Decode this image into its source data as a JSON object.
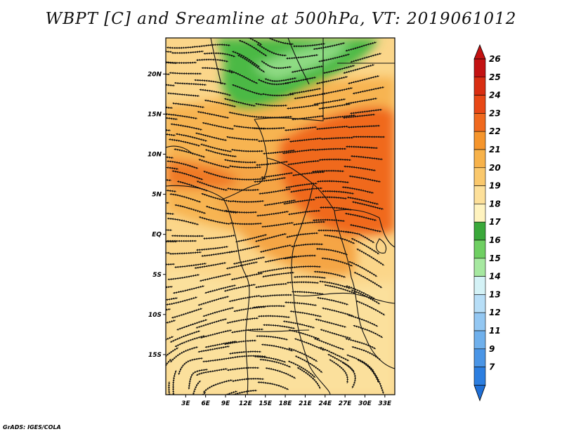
{
  "title": "WBPT [C] and Sreamline at 500hPa, VT: 2019061012",
  "credit": "GrADS: IGES/COLA",
  "map": {
    "lon_range": [
      0,
      34.5
    ],
    "lat_range": [
      -20,
      24.5
    ],
    "lat_ticks": [
      {
        "lat": 20,
        "label": "20N"
      },
      {
        "lat": 15,
        "label": "15N"
      },
      {
        "lat": 10,
        "label": "10N"
      },
      {
        "lat": 5,
        "label": "5N"
      },
      {
        "lat": 0,
        "label": "EQ"
      },
      {
        "lat": -5,
        "label": "5S"
      },
      {
        "lat": -10,
        "label": "10S"
      },
      {
        "lat": -15,
        "label": "15S"
      }
    ],
    "lon_ticks": [
      {
        "lon": 3,
        "label": "3E"
      },
      {
        "lon": 6,
        "label": "6E"
      },
      {
        "lon": 9,
        "label": "9E"
      },
      {
        "lon": 12,
        "label": "12E"
      },
      {
        "lon": 15,
        "label": "15E"
      },
      {
        "lon": 18,
        "label": "18E"
      },
      {
        "lon": 21,
        "label": "21E"
      },
      {
        "lon": 24,
        "label": "24E"
      },
      {
        "lon": 27,
        "label": "27E"
      },
      {
        "lon": 30,
        "label": "30E"
      },
      {
        "lon": 33,
        "label": "33E"
      }
    ],
    "field_regions": [
      {
        "name": "green-north",
        "value": 17,
        "color": "#4bb945"
      },
      {
        "name": "lightgreen-north",
        "value": 16,
        "color": "#8fdb84"
      },
      {
        "name": "warm-band-north",
        "value": 21,
        "color": "#f6b04f"
      },
      {
        "name": "hot-core-east",
        "value": 23,
        "color": "#f0691e"
      },
      {
        "name": "hot-core-west",
        "value": 23,
        "color": "#f0691e"
      },
      {
        "name": "equatorial-orange",
        "value": 22,
        "color": "#f5953a"
      },
      {
        "name": "southern-pale",
        "value": 19,
        "color": "#fbdc8c"
      }
    ]
  },
  "colorbar": {
    "levels": [
      {
        "label": "26",
        "color": "#c31212"
      },
      {
        "label": "25",
        "color": "#d92e12"
      },
      {
        "label": "24",
        "color": "#e84816"
      },
      {
        "label": "23",
        "color": "#f0691e"
      },
      {
        "label": "22",
        "color": "#f5952c"
      },
      {
        "label": "21",
        "color": "#f7b24a"
      },
      {
        "label": "20",
        "color": "#fac86c"
      },
      {
        "label": "19",
        "color": "#fde09a"
      },
      {
        "label": "18",
        "color": "#fff3bf"
      },
      {
        "label": "17",
        "color": "#3aa83a"
      },
      {
        "label": "16",
        "color": "#6fcf62"
      },
      {
        "label": "15",
        "color": "#a6e8a0"
      },
      {
        "label": "14",
        "color": "#d4f2f6"
      },
      {
        "label": "13",
        "color": "#b7def7"
      },
      {
        "label": "12",
        "color": "#93c7f2"
      },
      {
        "label": "11",
        "color": "#6fb0ec"
      },
      {
        "label": "9",
        "color": "#4a95e6"
      },
      {
        "label": "7",
        "color": "#2c7ee0"
      }
    ],
    "bottom_color": "#1f6fd6"
  }
}
